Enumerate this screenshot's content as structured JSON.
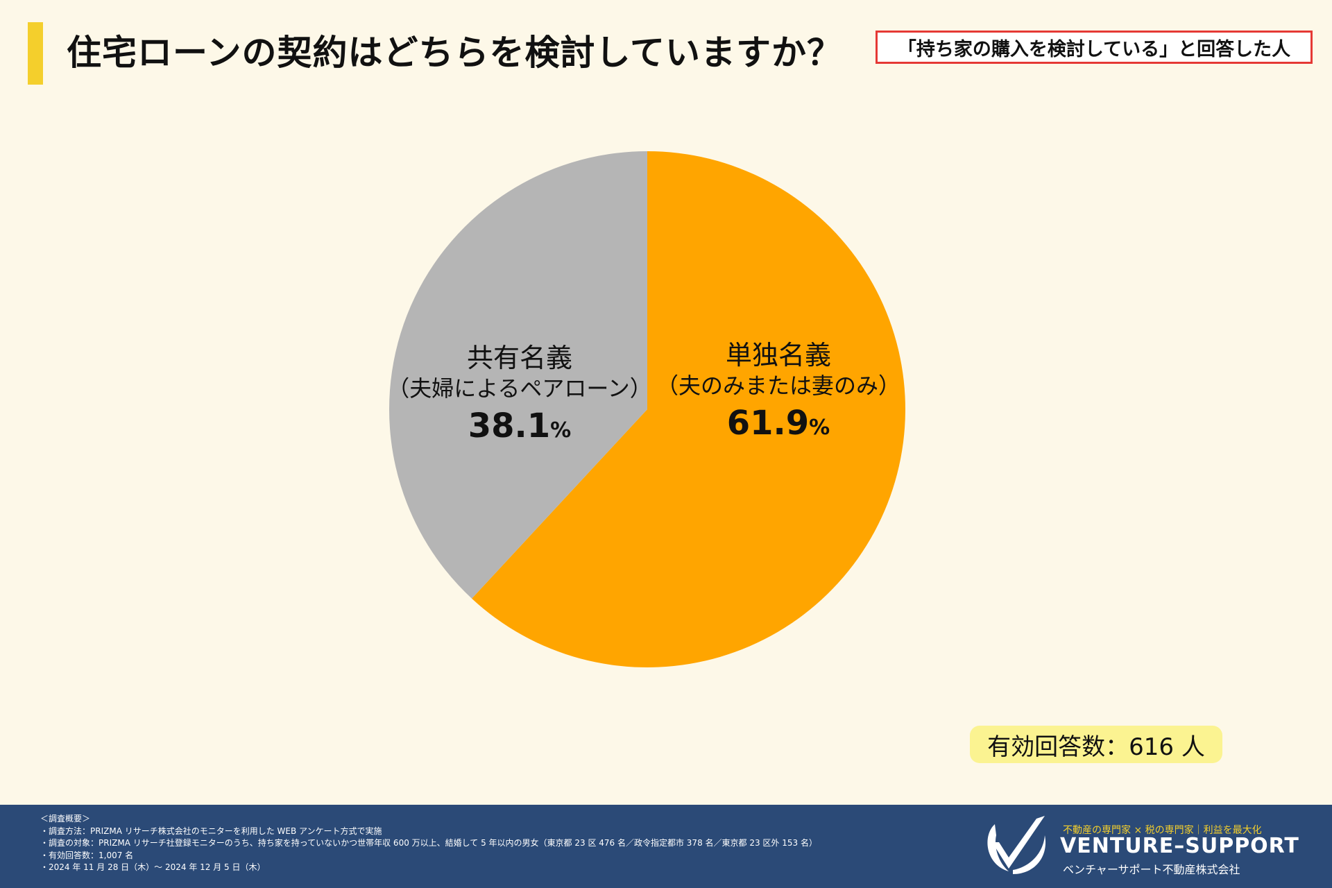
{
  "title": "住宅ローンの契約はどちらを検討していますか？",
  "subset_note": "「持ち家の購入を検討している」と回答した人",
  "colors": {
    "background": "#fdf8e8",
    "title_accent": "#f4cf2c",
    "subset_border": "#e53935",
    "badge": "#fbf391",
    "footer": "#2b4a77"
  },
  "chart_data": {
    "type": "pie",
    "title": "住宅ローンの契約はどちらを検討していますか？",
    "start_angle_deg": 0,
    "direction": "clockwise",
    "slices": [
      {
        "label": "単独名義",
        "sublabel": "（夫のみまたは妻のみ）",
        "value": 61.9,
        "value_text": "61.9",
        "unit": "%",
        "color": "#ffa500"
      },
      {
        "label": "共有名義",
        "sublabel": "（夫婦によるペアローン）",
        "value": 38.1,
        "value_text": "38.1",
        "unit": "%",
        "color": "#b5b5b5"
      }
    ]
  },
  "respondents": "有効回答数：616 人",
  "footer": {
    "notes": [
      "＜調査概要＞",
      "・調査方法：PRIZMA リサーチ株式会社のモニターを利用した WEB アンケート方式で実施",
      "・調査の対象：PRIZMA リサーチ社登録モニターのうち、持ち家を持っていないかつ世帯年収 600 万以上、結婚して 5 年以内の男女（東京都 23 区 476 名／政令指定都市 378 名／東京都 23 区外 153 名）",
      "・有効回答数：1,007 名",
      "・2024 年 11 月 28 日（木）～ 2024 年 12 月 5 日（木）"
    ],
    "brand": {
      "tagline": "不動産の専門家 × 税の専門家｜利益を最大化",
      "name": "VENTURE–SUPPORT",
      "company": "ベンチャーサポート不動産株式会社",
      "logo_icon": "v-check-logo-icon"
    }
  }
}
